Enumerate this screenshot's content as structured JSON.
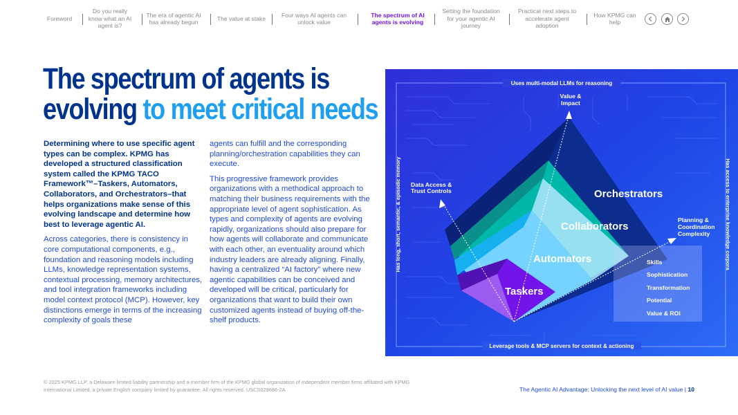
{
  "nav": {
    "items": [
      {
        "label": "Foreword",
        "active": false
      },
      {
        "label": "Do you really know what an AI agent is?",
        "active": false
      },
      {
        "label": "The era of agentic AI has already begun",
        "active": false
      },
      {
        "label": "The value at stake",
        "active": false
      },
      {
        "label": "Four ways AI agents can unlock value",
        "active": false
      },
      {
        "label": "The spectrum of AI agents is evolving",
        "active": true
      },
      {
        "label": "Setting the foundation for your agentic AI journey",
        "active": false
      },
      {
        "label": "Practical next steps to accelerate agent adoption",
        "active": false
      },
      {
        "label": "How KPMG can help",
        "active": false
      }
    ],
    "prev_icon": "chevron-left-icon",
    "home_icon": "home-icon",
    "next_icon": "chevron-right-icon"
  },
  "title": {
    "line1": "The spectrum of agents is",
    "line2a": "evolving",
    "line2b": "to meet critical needs"
  },
  "body": {
    "lead": "Determining where to use specific agent types can be complex. KPMG has developed a structured classification system called the KPMG TACO Framework™–Taskers, Automators, Collaborators, and Orchestrators–that helps organizations make sense of this evolving landscape and determine how best to leverage agentic AI.",
    "para2": "Across categories, there is consistency in core computational components, e.g., foundation and reasoning models including LLMs, knowledge representation systems, contextual processing, memory architectures, and tool integration frameworks including model context protocol (MCP). However, key distinctions emerge in terms of the increasing complexity of goals these",
    "para3": "agents can fulfill and the corresponding planning/orchestration capabilities they can execute.",
    "para4": "This progressive framework provides organizations with a methodical approach to matching their business requirements with the appropriate level of agent sophistication. As types and complexity of agents are evolving rapidly, organizations should also prepare for how agents will collaborate and communicate with each other, an eventuality around which industry leaders are already aligning. Finally, having a centralized “AI factory” where new agentic capabilities can be conceived and developed will be critical, particularly for organizations that want to build their own customized agents instead of buying off-the-shelf products."
  },
  "diagram": {
    "top_label": "Uses multi-modal LLMs for reasoning",
    "bottom_label": "Leverage tools & MCP servers for context & actioning",
    "left_label": "Has long, short, semantic, & episodic memory",
    "right_label": "Has access to enterprise knowledge corpora",
    "axis_up": [
      "Value &",
      "Impact"
    ],
    "axis_left": [
      "Data Access &",
      "Trust Controls"
    ],
    "axis_right": [
      "Planning &",
      "Coordination",
      "Complexity"
    ],
    "tiers": [
      "Orchestrators",
      "Collaborators",
      "Automators",
      "Taskers"
    ],
    "dimensions": [
      "Skills",
      "Sophistication",
      "Transformation",
      "Potential",
      "Value & ROI"
    ],
    "colors": {
      "background": "#1e49e2",
      "orchestrators": "#0c2c8e",
      "collaborators": "#00b8a9",
      "automators": "#76d2ff",
      "taskers": "#7213ea"
    }
  },
  "footer": {
    "legal": "© 2025 KPMG LLP, a Delaware limited liability partnership and a member firm of the KPMG global organization of independent member firms affiliated with KPMG International Limited, a private English company limited by guarantee. All rights reserved. USCS029686-2A",
    "doc_title": "The Agentic AI Advantage: Unlocking the next level of AI value",
    "page": "10"
  }
}
